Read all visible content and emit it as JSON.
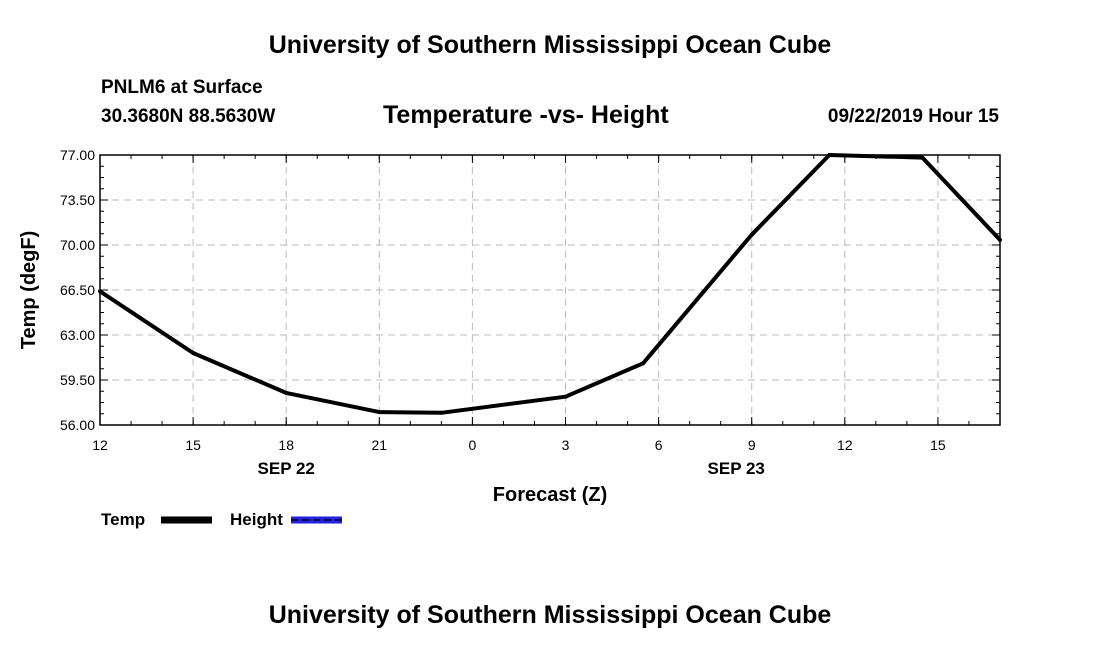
{
  "page": {
    "top_title": "University of Southern Mississippi Ocean Cube",
    "bottom_title": "University of Southern Mississippi Ocean Cube",
    "station": "PNLM6 at Surface",
    "coords": "30.3680N 88.5630W",
    "datetime": "09/22/2019 Hour 15"
  },
  "chart_data": {
    "type": "line",
    "title": "Temperature -vs- Height",
    "xlabel": "Forecast (Z)",
    "ylabel": "Temp (degF)",
    "ylim": [
      56.0,
      77.0
    ],
    "xlim": [
      0,
      29
    ],
    "yticks": [
      "56.00",
      "59.50",
      "63.00",
      "66.50",
      "70.00",
      "73.50",
      "77.00"
    ],
    "xticks": [
      {
        "x": 0,
        "label": "12"
      },
      {
        "x": 3,
        "label": "15"
      },
      {
        "x": 6,
        "label": "18"
      },
      {
        "x": 9,
        "label": "21"
      },
      {
        "x": 12,
        "label": "0"
      },
      {
        "x": 15,
        "label": "3"
      },
      {
        "x": 18,
        "label": "6"
      },
      {
        "x": 21,
        "label": "9"
      },
      {
        "x": 24,
        "label": "12"
      },
      {
        "x": 27,
        "label": "15"
      }
    ],
    "date_labels": [
      {
        "x": 6,
        "label": "SEP 22"
      },
      {
        "x": 20.5,
        "label": "SEP 23"
      }
    ],
    "grid": true,
    "series": [
      {
        "name": "Temp",
        "color": "#000000",
        "x": [
          0,
          3,
          6,
          9,
          11,
          15,
          17.5,
          21,
          23.5,
          26.5,
          29
        ],
        "values": [
          66.4,
          61.6,
          58.5,
          57.0,
          56.95,
          58.2,
          60.8,
          70.8,
          77.0,
          76.8,
          70.4
        ]
      },
      {
        "name": "Height",
        "color": "#2222dd",
        "x": [],
        "values": []
      }
    ]
  },
  "legend": {
    "temp_label": "Temp",
    "height_label": "Height"
  }
}
